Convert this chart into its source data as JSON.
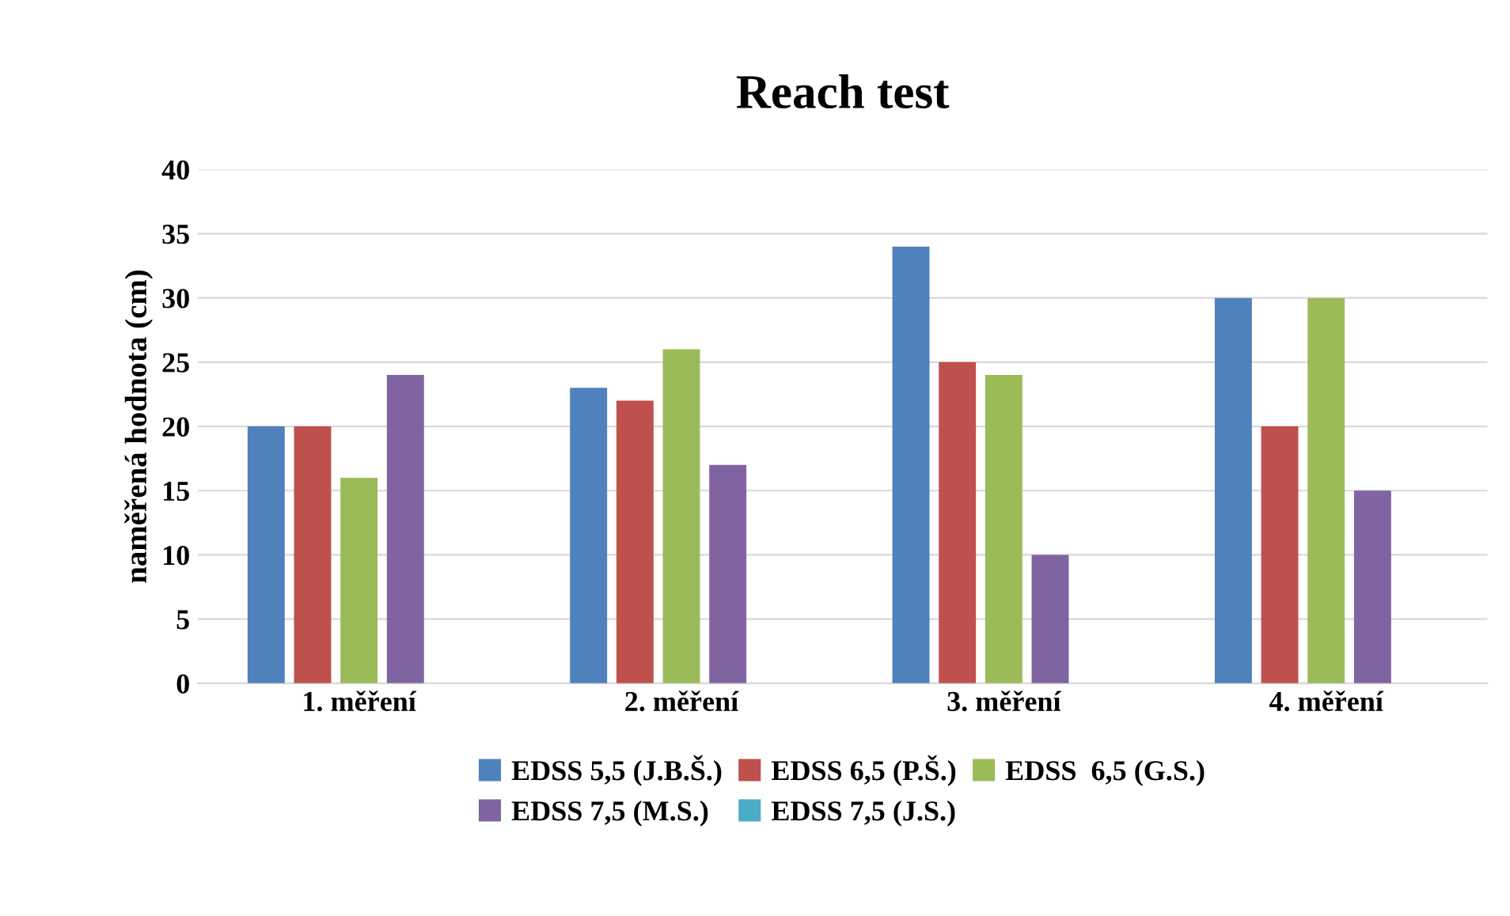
{
  "chart_data": {
    "type": "bar",
    "title": "Reach test",
    "ylabel": "naměřená hodnota (cm)",
    "categories": [
      "1. měření",
      "2. měření",
      "3. měření",
      "4. měření"
    ],
    "series": [
      {
        "name": "EDSS 5,5 (J.B.Š.)",
        "color": "#4f81bd",
        "values": [
          20,
          23,
          34,
          30
        ]
      },
      {
        "name": "EDSS 6,5 (P.Š.)",
        "color": "#c0504d",
        "values": [
          20,
          22,
          25,
          20
        ]
      },
      {
        "name": "EDSS  6,5 (G.S.)",
        "color": "#9bbb59",
        "values": [
          16,
          26,
          24,
          30
        ]
      },
      {
        "name": "EDSS 7,5 (M.S.)",
        "color": "#8064a2",
        "values": [
          24,
          17,
          10,
          15
        ]
      },
      {
        "name": "EDSS 7,5 (J.S.)",
        "color": "#4bacc6",
        "values": [
          null,
          null,
          null,
          null
        ]
      }
    ],
    "ylim": [
      0,
      40
    ],
    "yticks": [
      0,
      5,
      10,
      15,
      20,
      25,
      30,
      35,
      40
    ],
    "grid": "y",
    "legend": "bottom"
  }
}
